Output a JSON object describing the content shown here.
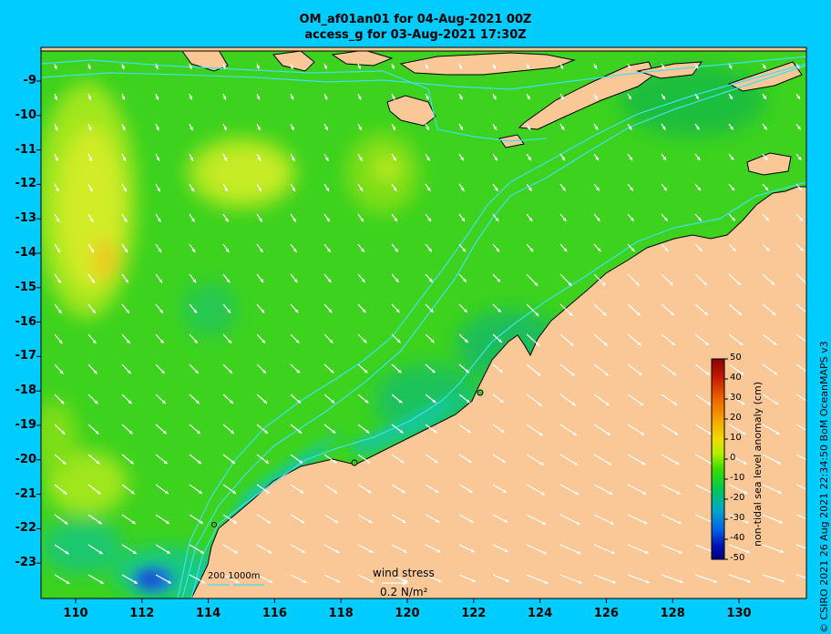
{
  "header": {
    "line1": "OM_af01an01 for 04-Aug-2021 00Z",
    "line2": "access_g for 03-Aug-2021 17:30Z"
  },
  "axes": {
    "y_ticks": [
      "-9",
      "-10",
      "-11",
      "-12",
      "-13",
      "-14",
      "-15",
      "-16",
      "-17",
      "-18",
      "-19",
      "-20",
      "-21",
      "-22",
      "-23"
    ],
    "x_ticks": [
      "110",
      "112",
      "114",
      "116",
      "118",
      "120",
      "122",
      "124",
      "126",
      "128",
      "130"
    ]
  },
  "colorbar": {
    "title": "non-tidal sea level anomaly (cm)",
    "ticks": [
      "50",
      "40",
      "30",
      "20",
      "10",
      "0",
      "-10",
      "-20",
      "-30",
      "-40",
      "-50"
    ],
    "colors": [
      "#8b0000",
      "#c81e00",
      "#f06400",
      "#f5a000",
      "#f0dc00",
      "#b4f000",
      "#3cdc00",
      "#00c850",
      "#00a8c8",
      "#0064e6",
      "#0014b4",
      "#000080"
    ]
  },
  "legend": {
    "wind_title": "wind stress",
    "wind_scale": "0.2 N/m²",
    "depth_contours": "200  1000m"
  },
  "credit": "© CSIRO 2021  26 Aug 2021 22:34:50 BoM OceanMAPS v3",
  "colors": {
    "land": "#f9c896",
    "ocean_base": "#3cd21e",
    "frame_bg": "#00ccff",
    "contour": "#40e0f0"
  }
}
